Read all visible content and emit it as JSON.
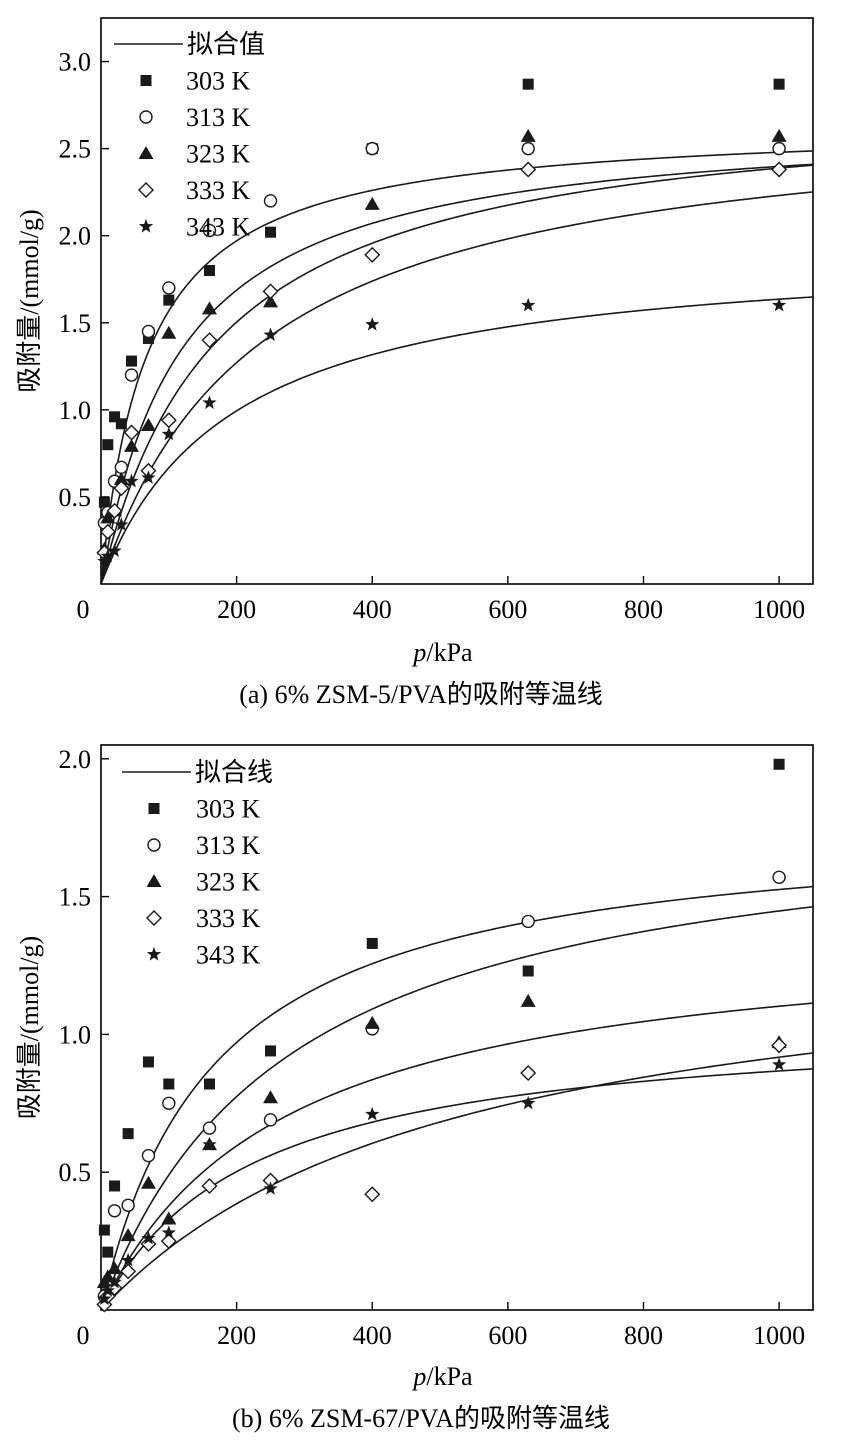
{
  "chart_data": [
    {
      "type": "scatter",
      "caption": "(a) 6% ZSM-5/PVA的吸附等温线",
      "xlabel_italic": "p",
      "xlabel_unit": "/kPa",
      "ylabel": "吸附量/(mmol/g)",
      "xlim": [
        0,
        1050
      ],
      "ylim": [
        0,
        3.25
      ],
      "x_ticks": [
        0,
        200,
        400,
        600,
        800,
        1000
      ],
      "y_ticks": [
        0.5,
        1.0,
        1.5,
        2.0,
        2.5,
        3.0
      ],
      "x_tick_labels": [
        "0",
        "200",
        "400",
        "600",
        "800",
        "1000"
      ],
      "y_tick_labels": [
        "0.5",
        "1.0",
        "1.5",
        "2.0",
        "2.5",
        "3.0"
      ],
      "legend_placement": "top-left",
      "fit_legend_label": "拟合值",
      "series": [
        {
          "name": "303 K",
          "marker": "square",
          "x": [
            5,
            10,
            20,
            30,
            45,
            70,
            100,
            160,
            250,
            400,
            630,
            1000
          ],
          "y": [
            0.47,
            0.8,
            0.96,
            0.92,
            1.28,
            1.41,
            1.63,
            1.8,
            2.02,
            2.5,
            2.87,
            2.87
          ],
          "fit": {
            "qm": 2.65,
            "b": 0.0145
          }
        },
        {
          "name": "313 K",
          "marker": "circle-open",
          "x": [
            5,
            10,
            20,
            30,
            45,
            70,
            100,
            160,
            250,
            400,
            630,
            1000
          ],
          "y": [
            0.35,
            0.41,
            0.59,
            0.67,
            1.2,
            1.45,
            1.7,
            2.03,
            2.2,
            2.5,
            2.5,
            2.5
          ],
          "fit": {
            "qm": 2.68,
            "b": 0.0085
          }
        },
        {
          "name": "323 K",
          "marker": "triangle",
          "x": [
            5,
            10,
            20,
            30,
            45,
            70,
            100,
            160,
            250,
            400,
            630,
            1000
          ],
          "y": [
            0.2,
            0.38,
            0.42,
            0.6,
            0.79,
            0.91,
            1.44,
            1.58,
            1.62,
            2.18,
            2.57,
            2.57
          ],
          "fit": {
            "qm": 2.8,
            "b": 0.0058
          }
        },
        {
          "name": "333 K",
          "marker": "diamond-open",
          "x": [
            5,
            10,
            20,
            30,
            45,
            70,
            100,
            160,
            250,
            400,
            630,
            1000
          ],
          "y": [
            0.18,
            0.3,
            0.42,
            0.55,
            0.87,
            0.65,
            0.94,
            1.4,
            1.68,
            1.89,
            2.38,
            2.38
          ],
          "fit": {
            "qm": 2.75,
            "b": 0.0043
          }
        },
        {
          "name": "343 K",
          "marker": "star",
          "x": [
            5,
            10,
            20,
            30,
            45,
            70,
            100,
            160,
            250,
            400,
            630,
            1000
          ],
          "y": [
            0.13,
            0.16,
            0.19,
            0.34,
            0.59,
            0.61,
            0.86,
            1.04,
            1.43,
            1.49,
            1.6,
            1.6
          ],
          "fit": {
            "qm": 1.95,
            "b": 0.0052
          }
        }
      ]
    },
    {
      "type": "scatter",
      "caption": "(b) 6% ZSM-67/PVA的吸附等温线",
      "xlabel_italic": "p",
      "xlabel_unit": "/kPa",
      "ylabel": "吸附量/(mmol/g)",
      "xlim": [
        0,
        1050
      ],
      "ylim": [
        0,
        2.05
      ],
      "x_ticks": [
        0,
        200,
        400,
        600,
        800,
        1000
      ],
      "y_ticks": [
        0.5,
        1.0,
        1.5,
        2.0
      ],
      "x_tick_labels": [
        "0",
        "200",
        "400",
        "600",
        "800",
        "1000"
      ],
      "y_tick_labels": [
        "0.5",
        "1.0",
        "1.5",
        "2.0"
      ],
      "legend_placement": "top-left",
      "fit_legend_label": "拟合线",
      "series": [
        {
          "name": "303 K",
          "marker": "square",
          "x": [
            5,
            10,
            20,
            40,
            70,
            100,
            160,
            250,
            400,
            630,
            1000
          ],
          "y": [
            0.29,
            0.21,
            0.45,
            0.64,
            0.9,
            0.82,
            0.82,
            0.94,
            1.33,
            1.23,
            1.98
          ],
          "fit": {
            "qm": 1.78,
            "b": 0.006
          }
        },
        {
          "name": "313 K",
          "marker": "circle-open",
          "x": [
            5,
            10,
            20,
            40,
            70,
            100,
            160,
            250,
            400,
            630,
            1000
          ],
          "y": [
            0.05,
            0.1,
            0.36,
            0.38,
            0.56,
            0.75,
            0.66,
            0.69,
            1.02,
            1.41,
            1.57
          ],
          "fit": {
            "qm": 1.85,
            "b": 0.0036
          }
        },
        {
          "name": "323 K",
          "marker": "triangle",
          "x": [
            5,
            10,
            20,
            40,
            70,
            100,
            160,
            250,
            400,
            630,
            1000
          ],
          "y": [
            0.1,
            0.12,
            0.15,
            0.27,
            0.46,
            0.33,
            0.6,
            0.77,
            1.04,
            1.12,
            0.97
          ],
          "fit": {
            "qm": 1.4,
            "b": 0.0037
          }
        },
        {
          "name": "333 K",
          "marker": "diamond-open",
          "x": [
            5,
            10,
            20,
            40,
            70,
            100,
            160,
            250,
            400,
            630,
            1000
          ],
          "y": [
            0.02,
            0.05,
            0.08,
            0.14,
            0.24,
            0.25,
            0.45,
            0.47,
            0.42,
            0.86,
            0.96
          ],
          "fit": {
            "qm": 1.4,
            "b": 0.0019
          }
        },
        {
          "name": "343 K",
          "marker": "star",
          "x": [
            5,
            10,
            20,
            40,
            70,
            100,
            160,
            250,
            400,
            630,
            1000
          ],
          "y": [
            0.04,
            0.07,
            0.1,
            0.18,
            0.26,
            0.28,
            0.6,
            0.44,
            0.71,
            0.75,
            0.89
          ],
          "fit": {
            "qm": 1.06,
            "b": 0.0045
          }
        }
      ]
    }
  ]
}
